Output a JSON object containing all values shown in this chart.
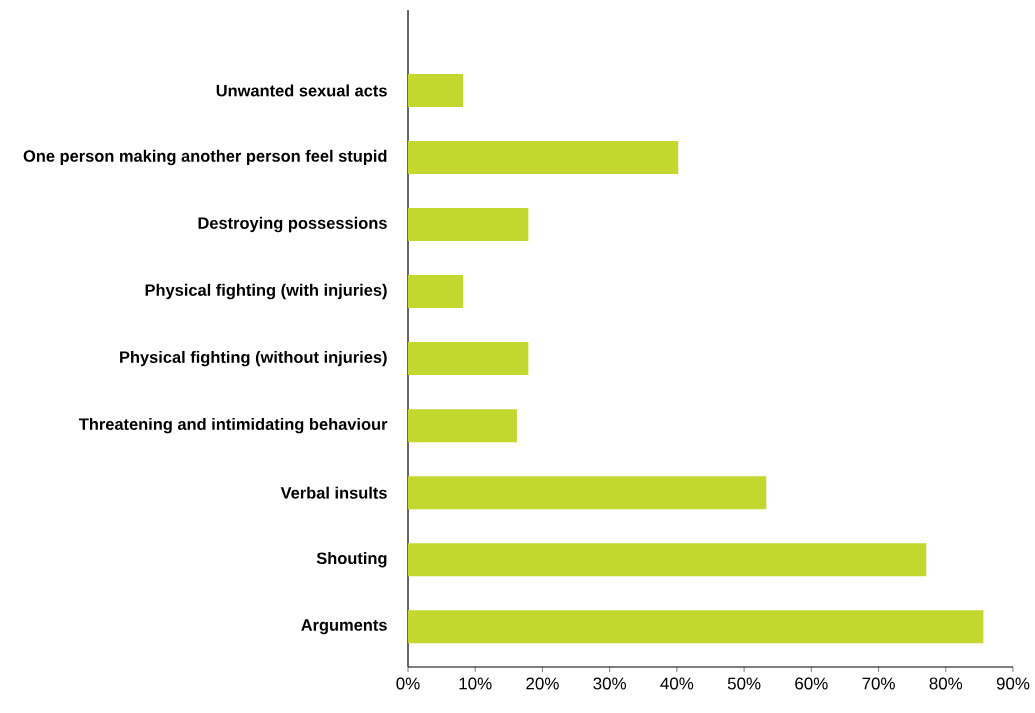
{
  "chart_data": {
    "type": "bar",
    "orientation": "horizontal",
    "categories": [
      "Unwanted sexual acts",
      "One person making another person feel stupid",
      "Destroying possessions",
      "Physical fighting (with injuries)",
      "Physical fighting (without injuries)",
      "Threatening and intimidating behaviour",
      "Verbal insults",
      "Shouting",
      "Arguments"
    ],
    "values": [
      8.2,
      40.2,
      17.9,
      8.2,
      17.9,
      16.2,
      53.3,
      77.1,
      85.6
    ],
    "color": "#c2d82f",
    "xlim": [
      0,
      90
    ],
    "xticks": [
      {
        "value": 0,
        "label": "0%"
      },
      {
        "value": 10,
        "label": "10%"
      },
      {
        "value": 20,
        "label": "20%"
      },
      {
        "value": 30,
        "label": "30%"
      },
      {
        "value": 40,
        "label": "40%"
      },
      {
        "value": 50,
        "label": "50%"
      },
      {
        "value": 60,
        "label": "60%"
      },
      {
        "value": 70,
        "label": "70%"
      },
      {
        "value": 80,
        "label": "80%"
      },
      {
        "value": 90,
        "label": "90%"
      }
    ],
    "grid": false
  }
}
